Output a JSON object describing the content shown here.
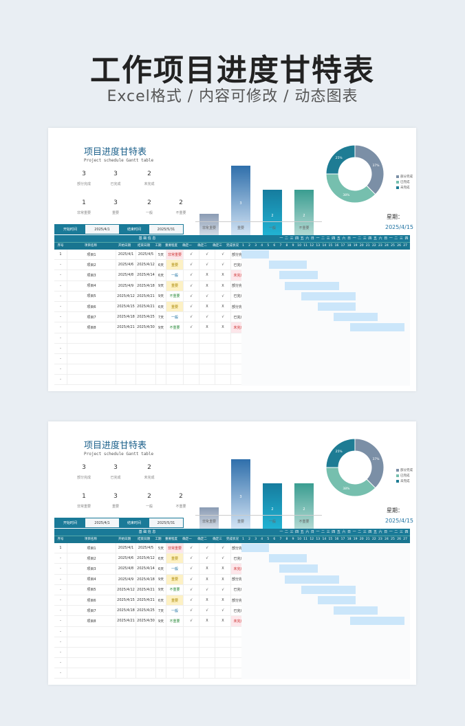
{
  "hero": {
    "title": "工作项目进度甘特表",
    "subtitle": "Excel格式 / 内容可修改 / 动态图表"
  },
  "sheet": {
    "title": "项目进度甘特表",
    "subtitle": "Project schedule Gantt table",
    "stats_top": [
      {
        "value": "3",
        "label": "部分完成"
      },
      {
        "value": "3",
        "label": "已完成"
      },
      {
        "value": "2",
        "label": "未完成"
      }
    ],
    "stats_bottom": [
      {
        "value": "1",
        "label": "非常重要"
      },
      {
        "value": "3",
        "label": "重要"
      },
      {
        "value": "2",
        "label": "一般"
      },
      {
        "value": "2",
        "label": "不重要"
      }
    ],
    "start_label": "开始时间",
    "start_value": "2025/4/1",
    "end_label": "结束时间",
    "end_value": "2025/5/31",
    "week_label": "星期：",
    "current_date": "2025/4/15",
    "table_group_left": "基 础 信 息",
    "table_group_right": "一 二 三 四 五 六 日 一 二 三 四 五 六 日 一 二 三 四 五 六 日 一 二 三 四",
    "columns": [
      "序号",
      "项目名称",
      "开始日期",
      "结束日期",
      "工期",
      "重要程度",
      "确定一",
      "确定二",
      "确定三",
      "完成状况"
    ],
    "days": [
      "1",
      "2",
      "3",
      "4",
      "5",
      "6",
      "7",
      "8",
      "9",
      "10",
      "11",
      "12",
      "13",
      "14",
      "15",
      "16",
      "17",
      "18",
      "19",
      "20",
      "21",
      "22",
      "23",
      "24",
      "25",
      "26",
      "27"
    ],
    "rows": [
      {
        "no": "1",
        "name": "项目1",
        "start": "2025/4/1",
        "end": "2025/4/5",
        "dur": "5天",
        "imp": "非常重要",
        "c1": "√",
        "c2": "√",
        "c3": "√",
        "status": "部分完成",
        "g0": 0,
        "g1": 5
      },
      {
        "no": "-",
        "name": "项目2",
        "start": "2025/4/6",
        "end": "2025/4/12",
        "dur": "6天",
        "imp": "重要",
        "c1": "√",
        "c2": "√",
        "c3": "√",
        "status": "已完成",
        "g0": 5,
        "g1": 12
      },
      {
        "no": "-",
        "name": "项目3",
        "start": "2025/4/8",
        "end": "2025/4/14",
        "dur": "6天",
        "imp": "一般",
        "c1": "√",
        "c2": "X",
        "c3": "X",
        "status": "未完成",
        "g0": 7,
        "g1": 14
      },
      {
        "no": "-",
        "name": "项目4",
        "start": "2025/4/9",
        "end": "2025/4/18",
        "dur": "9天",
        "imp": "重要",
        "c1": "√",
        "c2": "X",
        "c3": "X",
        "status": "部分完成",
        "g0": 8,
        "g1": 18
      },
      {
        "no": "-",
        "name": "项目5",
        "start": "2025/4/12",
        "end": "2025/4/21",
        "dur": "9天",
        "imp": "不重要",
        "c1": "√",
        "c2": "√",
        "c3": "√",
        "status": "已完成",
        "g0": 11,
        "g1": 21
      },
      {
        "no": "-",
        "name": "项目6",
        "start": "2025/4/15",
        "end": "2025/4/21",
        "dur": "6天",
        "imp": "重要",
        "c1": "√",
        "c2": "X",
        "c3": "X",
        "status": "部分完成",
        "g0": 14,
        "g1": 21
      },
      {
        "no": "-",
        "name": "项目7",
        "start": "2025/4/18",
        "end": "2025/4/25",
        "dur": "7天",
        "imp": "一般",
        "c1": "√",
        "c2": "√",
        "c3": "√",
        "status": "已完成",
        "g0": 17,
        "g1": 25
      },
      {
        "no": "-",
        "name": "项目8",
        "start": "2025/4/21",
        "end": "2025/4/30",
        "dur": "9天",
        "imp": "不重要",
        "c1": "√",
        "c2": "X",
        "c3": "X",
        "status": "未完成",
        "g0": 20,
        "g1": 30
      },
      {
        "no": "-"
      },
      {
        "no": "-"
      },
      {
        "no": "-"
      },
      {
        "no": "-"
      },
      {
        "no": "-"
      }
    ]
  },
  "chart_data": [
    {
      "type": "bar",
      "categories": [
        "非常重要",
        "重要",
        "一般",
        "不重要"
      ],
      "values": [
        1,
        3,
        2,
        2
      ],
      "ylim": [
        0,
        3.3
      ]
    },
    {
      "type": "pie",
      "labels": [
        "部分完成",
        "已完成",
        "未完成"
      ],
      "values": [
        37.5,
        37.5,
        25
      ],
      "value_labels": [
        "37%",
        "38%",
        "25%"
      ],
      "colors": [
        "#7b8fa6",
        "#76bfae",
        "#1e7c94"
      ],
      "legend_position": "right"
    }
  ]
}
